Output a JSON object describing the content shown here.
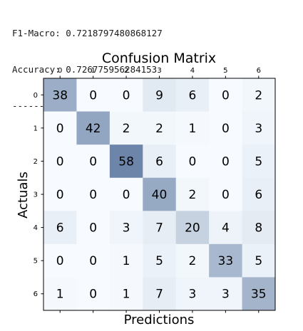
{
  "output": {
    "f1_line": "F1-Macro: 0.7218797480868127",
    "accuracy_line": "Accuracy: 0.726775956284153",
    "separator": "---------------------------------"
  },
  "chart_data": {
    "type": "heatmap",
    "title": "Confusion Matrix",
    "xlabel": "Predictions",
    "ylabel": "Actuals",
    "x_categories": [
      "0",
      "1",
      "2",
      "3",
      "4",
      "5",
      "6"
    ],
    "y_categories": [
      "0",
      "1",
      "2",
      "3",
      "4",
      "5",
      "6"
    ],
    "x_axis_position": "top",
    "colormap": "Blues",
    "value_range": [
      0,
      100
    ],
    "values": [
      [
        38,
        0,
        0,
        9,
        6,
        0,
        2
      ],
      [
        0,
        42,
        2,
        2,
        1,
        0,
        3
      ],
      [
        0,
        0,
        58,
        6,
        0,
        0,
        5
      ],
      [
        0,
        0,
        0,
        40,
        2,
        0,
        6
      ],
      [
        6,
        0,
        3,
        7,
        20,
        4,
        8
      ],
      [
        0,
        0,
        1,
        5,
        2,
        33,
        5
      ],
      [
        1,
        0,
        1,
        7,
        3,
        3,
        35
      ]
    ],
    "grid": false,
    "colors": {
      "low": "#f7fbff",
      "high": "#08306b",
      "text": "#000000",
      "frame": "#000000"
    }
  }
}
